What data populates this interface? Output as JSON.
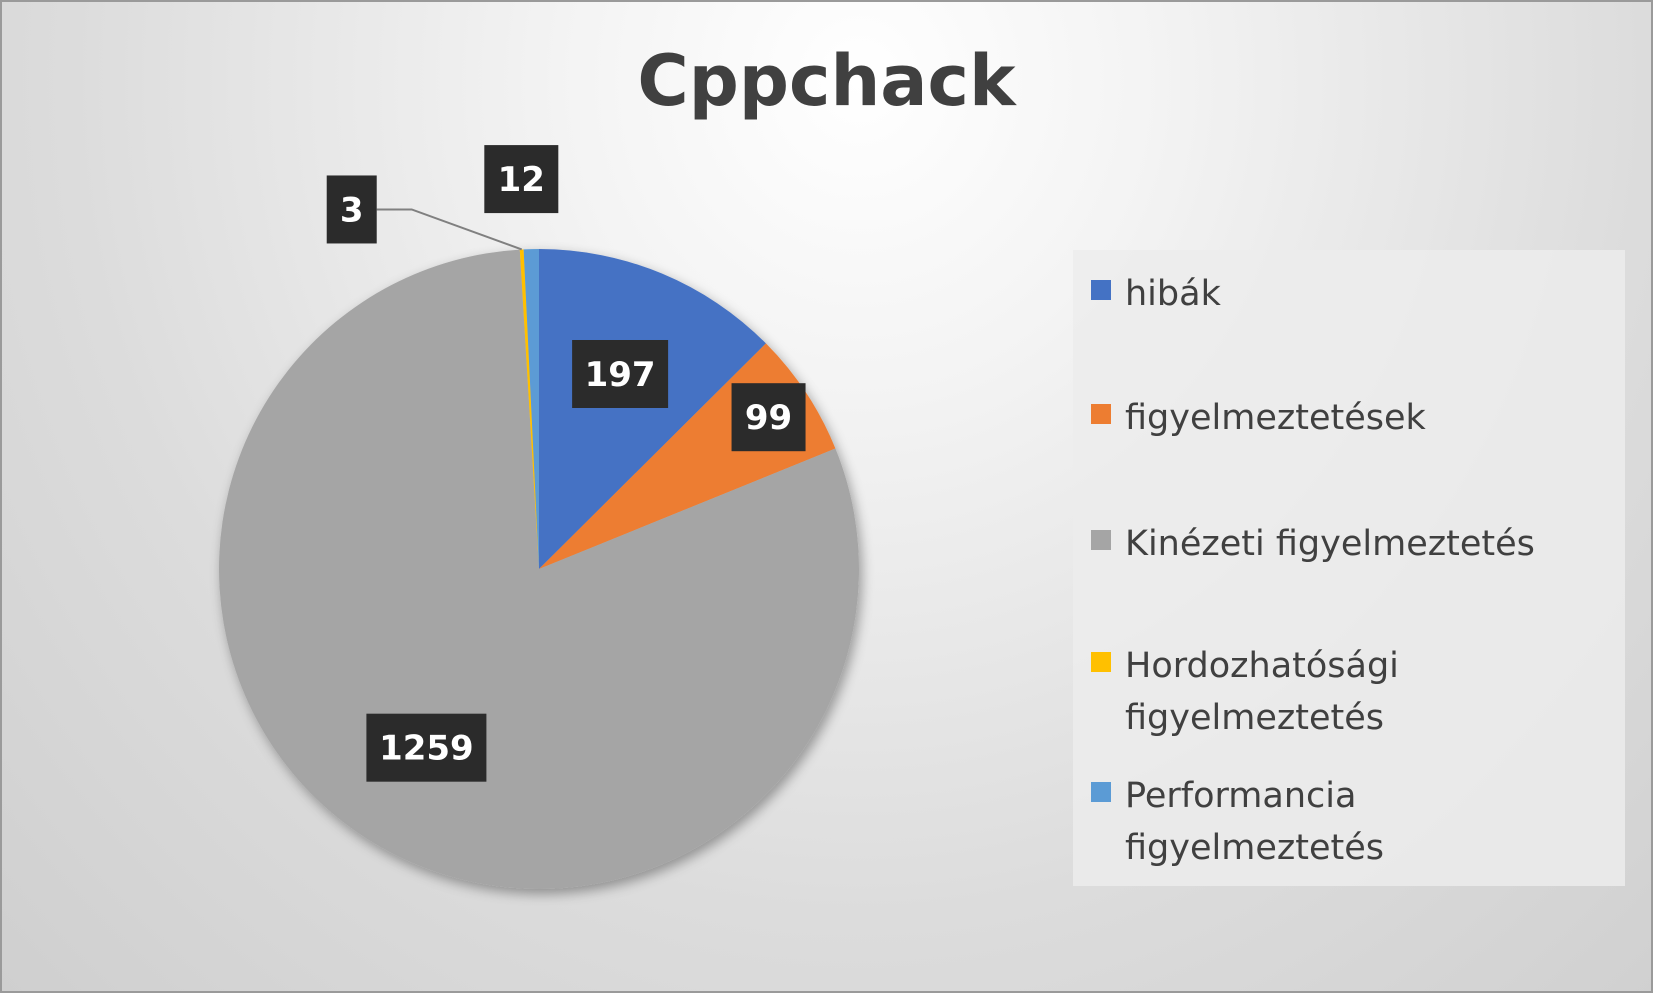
{
  "chart_data": {
    "type": "pie",
    "title": "Cppchack",
    "categories": [
      "hibák",
      "figyelmeztetések",
      "Kinézeti figyelmeztetés",
      "Hordozhatósági figyelmeztetés",
      "Performancia figyelmeztetés"
    ],
    "values": [
      197,
      99,
      1259,
      3,
      12
    ],
    "labels": [
      "197",
      "99",
      "1259",
      "3",
      "12"
    ],
    "colors": [
      "#4472C4",
      "#ED7D31",
      "#A5A5A5",
      "#FFC000",
      "#5B9BD5"
    ],
    "legend_position": "right",
    "start_angle_deg": 0,
    "direction": "clockwise"
  }
}
